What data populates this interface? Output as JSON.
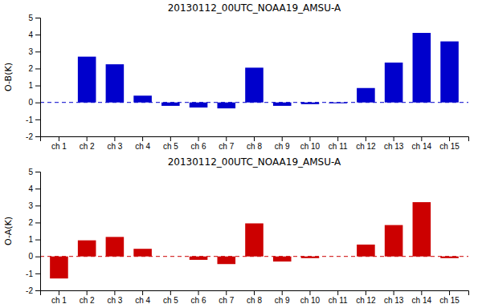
{
  "chart_data": [
    {
      "type": "bar",
      "title": "20130112_00UTC_NOAA19_AMSU-A",
      "y_label": "O-B(K)",
      "categories": [
        "ch 1",
        "ch 2",
        "ch 3",
        "ch 4",
        "ch 5",
        "ch 6",
        "ch 7",
        "ch 8",
        "ch 9",
        "ch 10",
        "ch 11",
        "ch 12",
        "ch 13",
        "ch 14",
        "ch 15"
      ],
      "values": [
        0.0,
        2.7,
        2.25,
        0.4,
        -0.2,
        -0.3,
        -0.35,
        2.05,
        -0.2,
        -0.1,
        -0.05,
        0.85,
        2.35,
        4.1,
        3.6
      ],
      "color": "#0000cc",
      "ylim": [
        -2,
        5
      ],
      "yticks": [
        -2,
        -1,
        0,
        1,
        2,
        3,
        4,
        5
      ],
      "grid": false
    },
    {
      "type": "bar",
      "title": "20130112_00UTC_NOAA19_AMSU-A",
      "y_label": "O-A(K)",
      "categories": [
        "ch 1",
        "ch 2",
        "ch 3",
        "ch 4",
        "ch 5",
        "ch 6",
        "ch 7",
        "ch 8",
        "ch 9",
        "ch 10",
        "ch 11",
        "ch 12",
        "ch 13",
        "ch 14",
        "ch 15"
      ],
      "values": [
        -1.3,
        0.95,
        1.15,
        0.45,
        0.0,
        -0.2,
        -0.45,
        1.95,
        -0.3,
        -0.1,
        0.0,
        0.7,
        1.85,
        3.2,
        -0.1
      ],
      "color": "#cc0000",
      "ylim": [
        -2,
        5
      ],
      "yticks": [
        -2,
        -1,
        0,
        1,
        2,
        3,
        4,
        5
      ],
      "grid": false
    }
  ]
}
